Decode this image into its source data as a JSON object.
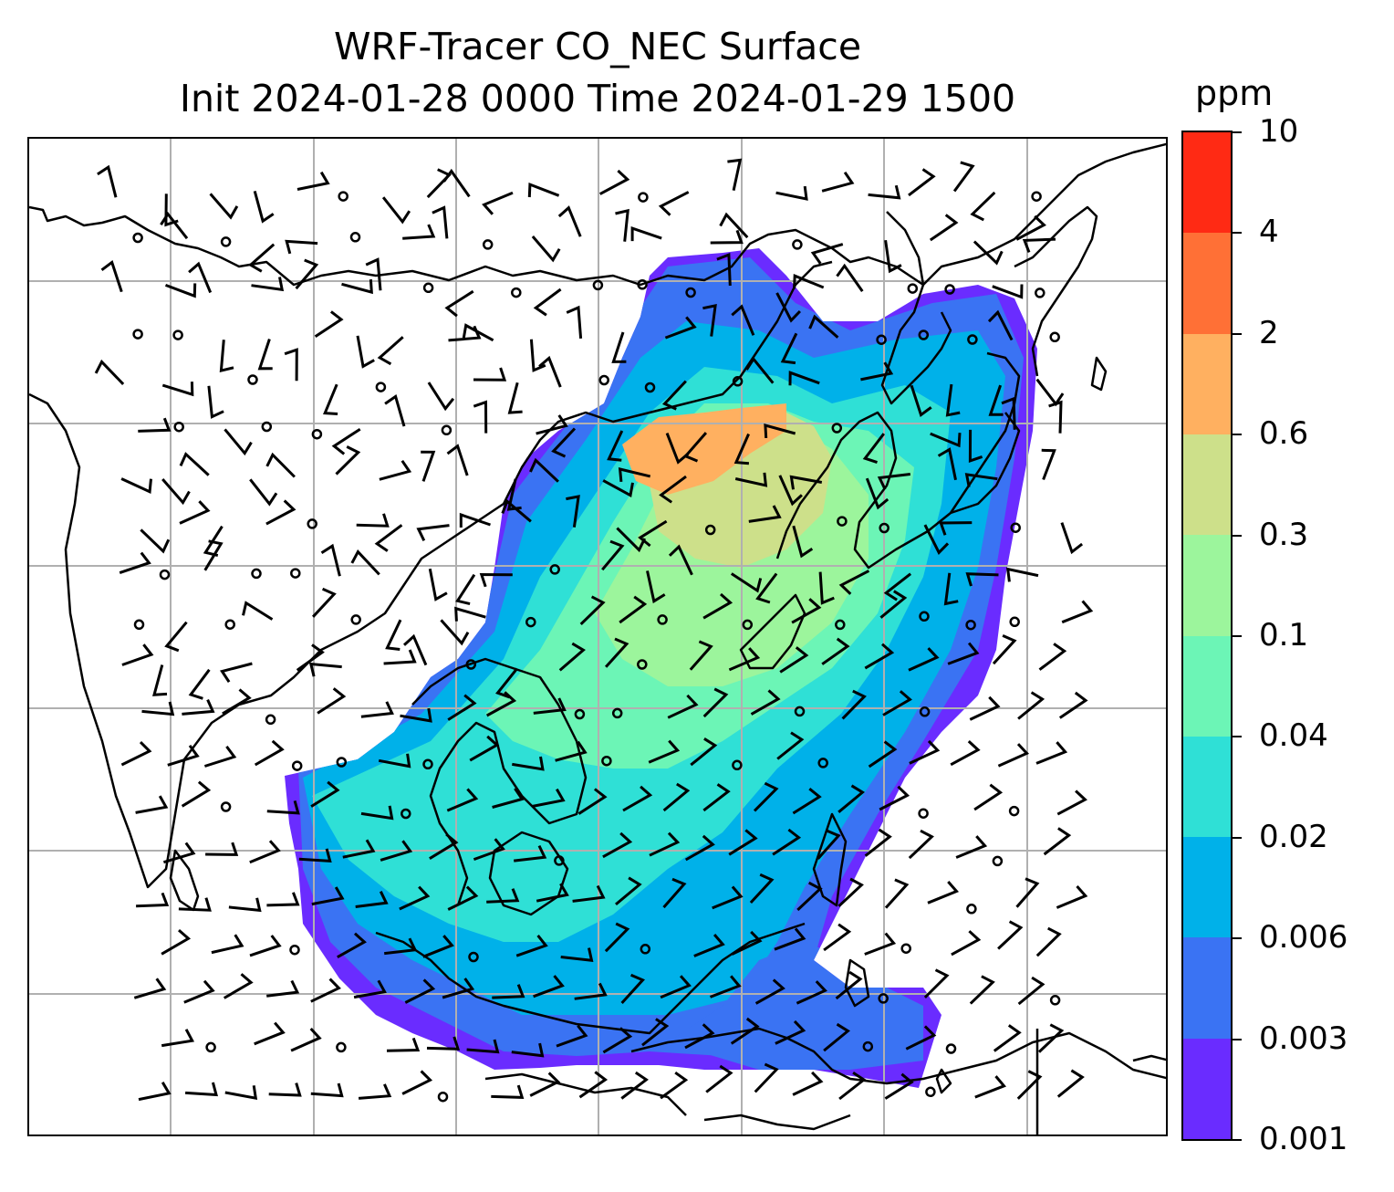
{
  "title": {
    "line1": "WRF-Tracer CO_NEC Surface",
    "line2": "Init 2024-01-28 0000 Time 2024-01-29 1500"
  },
  "colorbar": {
    "unit": "ppm",
    "levels": [
      "0.001",
      "0.003",
      "0.006",
      "0.02",
      "0.04",
      "0.1",
      "0.3",
      "0.6",
      "2",
      "4",
      "10"
    ],
    "colors": [
      "#6a2cff",
      "#3a73f3",
      "#00b1e9",
      "#2fe0d6",
      "#6cf5b6",
      "#9cf59c",
      "#cde08a",
      "#ffb060",
      "#ff7036",
      "#ff2a14"
    ]
  },
  "map": {
    "field_description": "CO_NEC tracer concentration",
    "gridlines": true
  }
}
